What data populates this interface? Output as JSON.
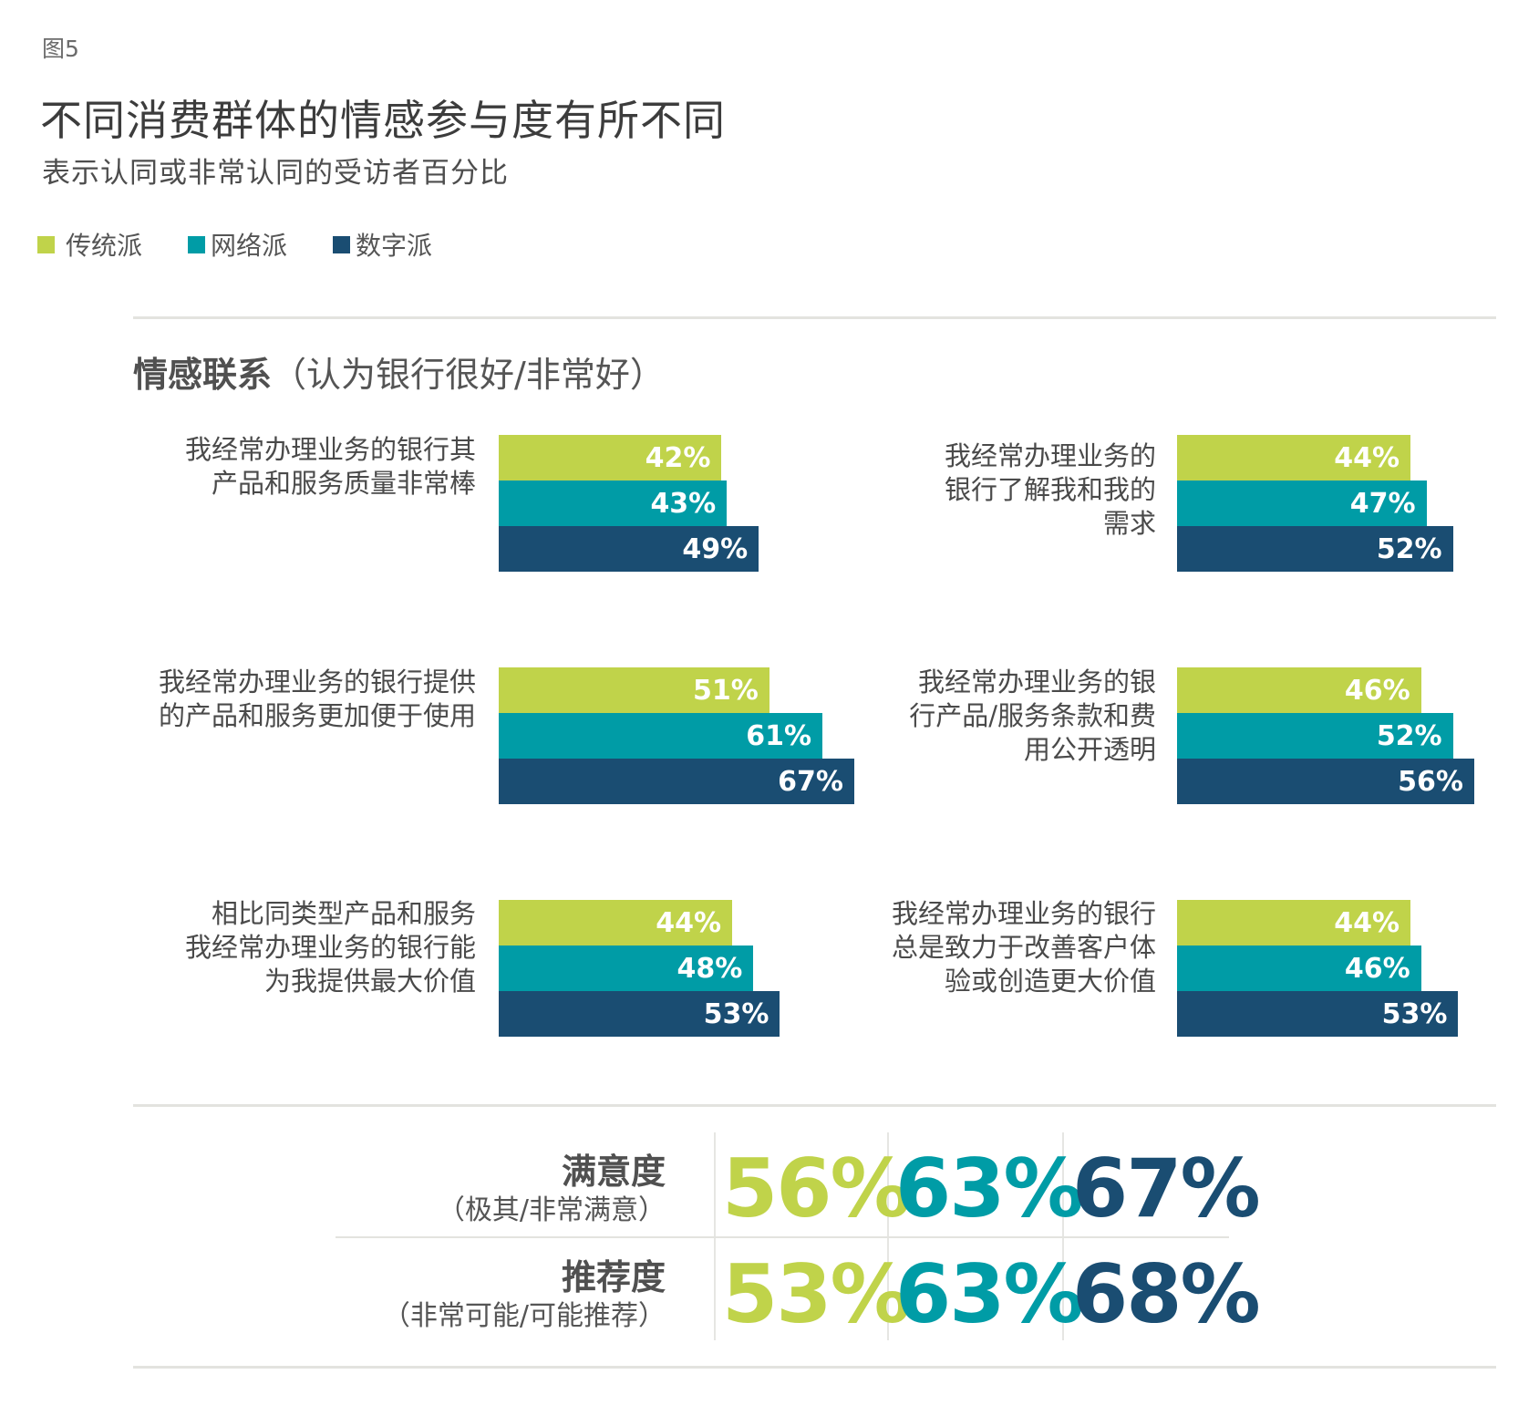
{
  "figure_label": "图5",
  "title": "不同消费群体的情感参与度有所不同",
  "subtitle": "表示认同或非常认同的受访者百分比",
  "legend": [
    {
      "label": "传统派",
      "color": "#C0D34A"
    },
    {
      "label": "网络派",
      "color": "#009CA6"
    },
    {
      "label": "数字派",
      "color": "#1A4D72"
    }
  ],
  "section": {
    "title_bold": "情感联系",
    "title_rest": "（认为银行很好/非常好）"
  },
  "groups": [
    {
      "label": "我经常办理业务的银行其\n产品和服务质量非常棒",
      "values": [
        42,
        43,
        49
      ],
      "labels": [
        "42%",
        "43%",
        "49%"
      ]
    },
    {
      "label": "我经常办理业务的\n银行了解我和我的\n需求",
      "values": [
        44,
        47,
        52
      ],
      "labels": [
        "44%",
        "47%",
        "52%"
      ]
    },
    {
      "label": "我经常办理业务的银行提供\n的产品和服务更加便于使用",
      "values": [
        51,
        61,
        67
      ],
      "labels": [
        "51%",
        "61%",
        "67%"
      ]
    },
    {
      "label": "我经常办理业务的银\n行产品/服务条款和费\n用公开透明",
      "values": [
        46,
        52,
        56
      ],
      "labels": [
        "46%",
        "52%",
        "56%"
      ]
    },
    {
      "label": "相比同类型产品和服务\n我经常办理业务的银行能\n为我提供最大价值",
      "values": [
        44,
        48,
        53
      ],
      "labels": [
        "44%",
        "48%",
        "53%"
      ]
    },
    {
      "label": "我经常办理业务的银行\n总是致力于改善客户体\n验或创造更大价值",
      "values": [
        44,
        46,
        53
      ],
      "labels": [
        "44%",
        "46%",
        "53%"
      ]
    }
  ],
  "stats": [
    {
      "label": "满意度",
      "sublabel": "（极其/非常满意）",
      "values": [
        "56%",
        "63%",
        "67%"
      ]
    },
    {
      "label": "推荐度",
      "sublabel": "（非常可能/可能推荐）",
      "values": [
        "53%",
        "63%",
        "68%"
      ]
    }
  ],
  "chart_data": {
    "type": "bar",
    "orientation": "horizontal",
    "title": "不同消费群体的情感参与度有所不同",
    "subtitle": "表示认同或非常认同的受访者百分比",
    "section_title": "情感联系（认为银行很好/非常好）",
    "legend_position": "top-left",
    "grid": false,
    "unit": "%",
    "categories": [
      "我经常办理业务的银行其产品和服务质量非常棒",
      "我经常办理业务的银行了解我和我的需求",
      "我经常办理业务的银行提供的产品和服务更加便于使用",
      "我经常办理业务的银行产品/服务条款和费用公开透明",
      "相比同类型产品和服务我经常办理业务的银行能为我提供最大价值",
      "我经常办理业务的银行总是致力于改善客户体验或创造更大价值"
    ],
    "series": [
      {
        "name": "传统派",
        "color": "#C0D34A",
        "values": [
          42,
          44,
          51,
          46,
          44,
          44
        ]
      },
      {
        "name": "网络派",
        "color": "#009CA6",
        "values": [
          43,
          47,
          61,
          52,
          48,
          46
        ]
      },
      {
        "name": "数字派",
        "color": "#1A4D72",
        "values": [
          49,
          52,
          67,
          56,
          53,
          53
        ]
      }
    ],
    "summary_table": {
      "rows": [
        "满意度（极其/非常满意）",
        "推荐度（非常可能/可能推荐）"
      ],
      "columns": [
        "传统派",
        "网络派",
        "数字派"
      ],
      "values": [
        [
          56,
          63,
          67
        ],
        [
          53,
          63,
          68
        ]
      ]
    }
  }
}
